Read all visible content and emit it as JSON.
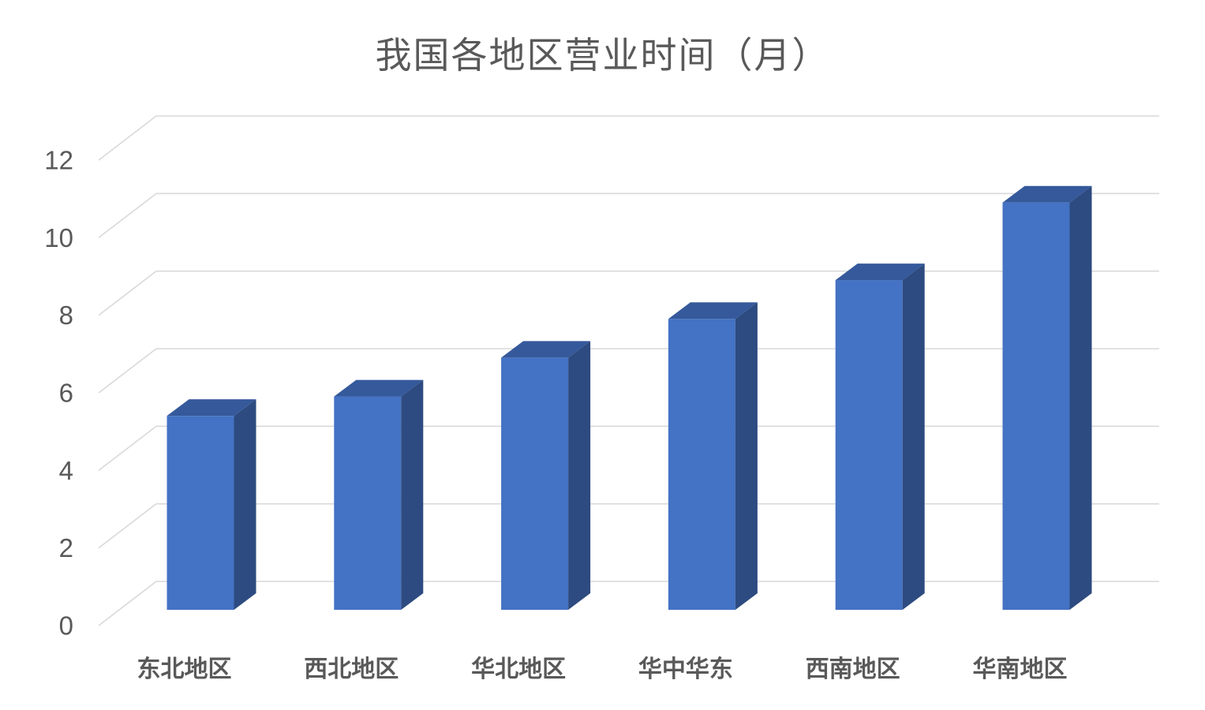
{
  "chart_data": {
    "type": "bar",
    "variant": "3d-clustered-column",
    "title": "我国各地区营业时间（月）",
    "categories": [
      "东北地区",
      "西北地区",
      "华北地区",
      "华中华东",
      "西南地区",
      "华南地区"
    ],
    "series": [
      {
        "name": "营业时间",
        "values": [
          5,
          5.5,
          6.5,
          7.5,
          8.5,
          10.5
        ]
      }
    ],
    "xlabel": "",
    "ylabel": "",
    "ylim": [
      0,
      12
    ],
    "yticks": [
      0,
      2,
      4,
      6,
      8,
      10,
      12
    ],
    "ytick_labels": [
      "0",
      "2",
      "4",
      "6",
      "8",
      "10",
      "12"
    ],
    "grid": true,
    "legend": false,
    "colors": {
      "bar_front": "#4472C4",
      "bar_top": "#35599B",
      "bar_side": "#2D4B80",
      "gridline": "#D9D9D9",
      "text": "#595959",
      "background": "#FFFFFF"
    }
  }
}
